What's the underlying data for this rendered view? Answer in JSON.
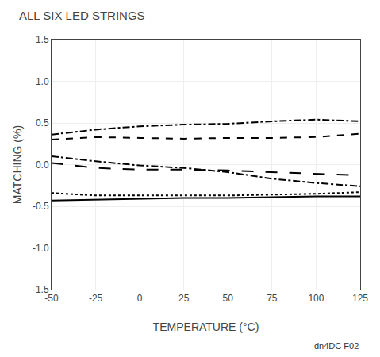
{
  "chart_data": {
    "type": "line",
    "title": "ALL SIX LED STRINGS",
    "xlabel": "TEMPERATURE (°C)",
    "ylabel": "MATCHING (%)",
    "annotation": "dn4DC F02",
    "x": [
      -50,
      -25,
      0,
      25,
      50,
      75,
      100,
      125
    ],
    "series": [
      {
        "color": "#000000",
        "line_style": "dashdot",
        "values": [
          0.36,
          0.42,
          0.46,
          0.48,
          0.49,
          0.52,
          0.54,
          0.52
        ]
      },
      {
        "color": "#000000",
        "line_style": "dash",
        "values": [
          0.3,
          0.33,
          0.32,
          0.31,
          0.32,
          0.32,
          0.33,
          0.37
        ]
      },
      {
        "color": "#000000",
        "line_style": "dashdot",
        "values": [
          0.1,
          0.04,
          -0.01,
          -0.04,
          -0.09,
          -0.17,
          -0.22,
          -0.26
        ]
      },
      {
        "color": "#000000",
        "line_style": "longdash",
        "values": [
          0.02,
          -0.04,
          -0.06,
          -0.06,
          -0.07,
          -0.09,
          -0.11,
          -0.13
        ]
      },
      {
        "color": "#000000",
        "line_style": "dot",
        "values": [
          -0.34,
          -0.37,
          -0.37,
          -0.37,
          -0.37,
          -0.36,
          -0.35,
          -0.33
        ]
      },
      {
        "color": "#000000",
        "line_style": "solid",
        "values": [
          -0.43,
          -0.42,
          -0.41,
          -0.4,
          -0.4,
          -0.39,
          -0.38,
          -0.38
        ]
      }
    ],
    "xlim": [
      -50,
      125
    ],
    "ylim": [
      -1.5,
      1.5
    ],
    "xticks": [
      -50,
      -25,
      0,
      25,
      50,
      75,
      100,
      125
    ],
    "yticks": [
      -1.5,
      {
        "value": -1.0,
        "label": "-1.0"
      },
      -0.5,
      {
        "value": 0.0,
        "label": "0.0"
      },
      0.5,
      {
        "value": 1.0,
        "label": "1.0"
      },
      1.5
    ],
    "grid": true
  }
}
